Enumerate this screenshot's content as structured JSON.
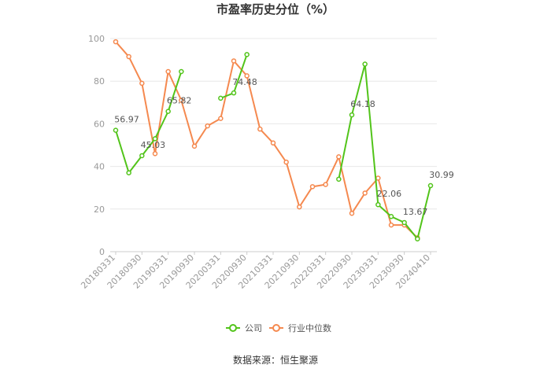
{
  "chart_data": {
    "type": "line",
    "title": "市盈率历史分位（%）",
    "source": "数据来源：恒生聚源",
    "ylim": [
      0,
      100
    ],
    "yticks": [
      "0",
      "20",
      "40",
      "60",
      "80",
      "100"
    ],
    "xticks": [
      "20180331",
      "20180930",
      "20190331",
      "20190930",
      "20200331",
      "20200930",
      "20210331",
      "20210930",
      "20220331",
      "20220930",
      "20230331",
      "20230930",
      "20240410"
    ],
    "categories": [
      "20180331",
      "20180630",
      "20180930",
      "20181231",
      "20190331",
      "20190630",
      "20190930",
      "20191231",
      "20200331",
      "20200630",
      "20200930",
      "20201231",
      "20210331",
      "20210630",
      "20210930",
      "20211231",
      "20220331",
      "20220630",
      "20220930",
      "20221231",
      "20230331",
      "20230630",
      "20230930",
      "20231231",
      "20240410"
    ],
    "series": [
      {
        "name": "公司",
        "color": "#52c41a",
        "values": [
          56.97,
          37,
          45.03,
          53,
          65.82,
          84.5,
          null,
          null,
          72,
          74.48,
          92.5,
          null,
          null,
          null,
          null,
          null,
          null,
          34,
          64.18,
          88,
          22.06,
          16.5,
          13.67,
          6,
          30.99
        ]
      },
      {
        "name": "行业中位数",
        "color": "#f5894f",
        "values": [
          98.5,
          91.5,
          79,
          46,
          84.5,
          71,
          49.5,
          59,
          62.5,
          89.5,
          82.5,
          57.5,
          51,
          42,
          21,
          30.5,
          31.5,
          44.5,
          18,
          27.5,
          34.5,
          12.5,
          12.5,
          6.5,
          null
        ]
      }
    ],
    "data_labels": [
      {
        "series": 0,
        "index": 0,
        "text": "56.97"
      },
      {
        "series": 0,
        "index": 2,
        "text": "45.03"
      },
      {
        "series": 0,
        "index": 4,
        "text": "65.82"
      },
      {
        "series": 0,
        "index": 9,
        "text": "74.48"
      },
      {
        "series": 0,
        "index": 18,
        "text": "64.18"
      },
      {
        "series": 0,
        "index": 20,
        "text": "22.06"
      },
      {
        "series": 0,
        "index": 22,
        "text": "13.67"
      },
      {
        "series": 0,
        "index": 24,
        "text": "30.99"
      }
    ],
    "legend_position": "bottom-center"
  }
}
